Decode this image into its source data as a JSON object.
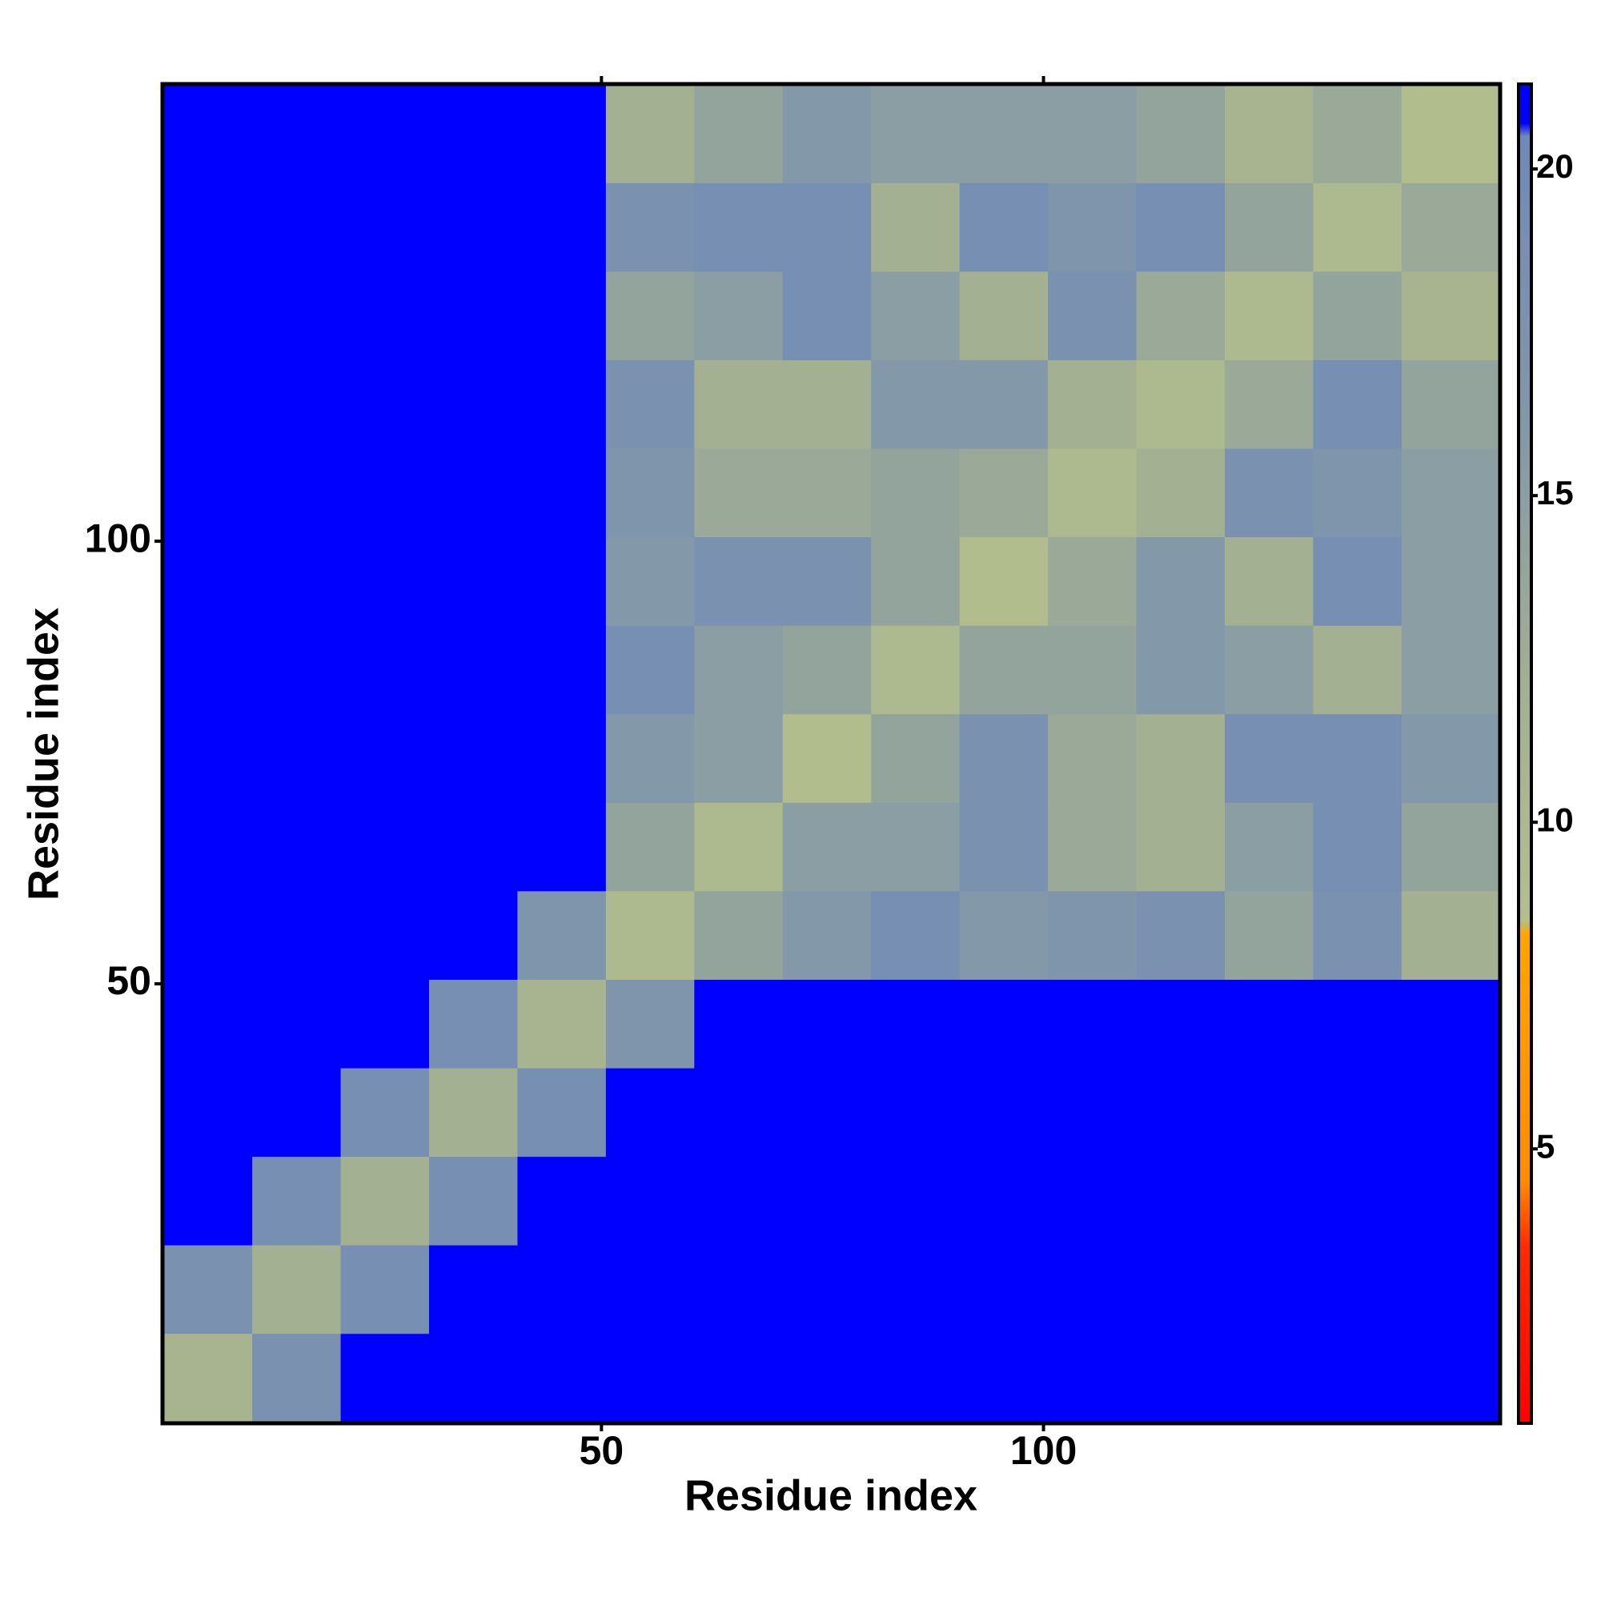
{
  "chart_data": {
    "type": "heatmap",
    "xlabel": "Residue index",
    "ylabel": "Residue index",
    "x_bins": [
      0.5,
      10.5,
      20.5,
      30.5,
      40.5,
      50.5,
      60.5,
      70.5,
      80.5,
      90.5,
      100.5,
      110.5,
      120.5,
      130.5,
      140.5,
      151.5
    ],
    "y_bins": [
      0.5,
      10.5,
      20.5,
      30.5,
      40.5,
      50.5,
      60.5,
      70.5,
      80.5,
      90.5,
      100.5,
      110.5,
      120.5,
      130.5,
      140.5,
      151.5
    ],
    "z": [
      [
        11,
        18,
        21,
        21,
        21,
        21,
        21,
        21,
        21,
        21,
        21,
        21,
        21,
        21,
        21
      ],
      [
        18,
        12,
        19,
        21,
        21,
        21,
        21,
        21,
        21,
        21,
        21,
        21,
        21,
        21,
        21
      ],
      [
        21,
        19,
        12,
        19,
        21,
        21,
        21,
        21,
        21,
        21,
        21,
        21,
        21,
        21,
        21
      ],
      [
        21,
        21,
        19,
        12,
        19,
        21,
        21,
        21,
        21,
        21,
        21,
        21,
        21,
        21,
        21
      ],
      [
        21,
        21,
        21,
        19,
        11,
        17,
        21,
        21,
        21,
        21,
        21,
        21,
        21,
        21,
        21
      ],
      [
        21,
        21,
        21,
        21,
        17,
        10,
        14,
        16,
        19,
        16,
        17,
        18,
        14,
        18,
        12
      ],
      [
        21,
        21,
        21,
        21,
        21,
        14,
        10,
        15,
        15,
        18,
        13,
        12,
        15,
        19,
        14
      ],
      [
        21,
        21,
        21,
        21,
        21,
        16,
        15,
        9,
        14,
        18,
        13,
        12,
        19,
        19,
        16
      ],
      [
        21,
        21,
        21,
        21,
        21,
        19,
        15,
        14,
        10,
        14,
        14,
        16,
        15,
        12,
        15
      ],
      [
        21,
        21,
        21,
        21,
        21,
        16,
        18,
        18,
        14,
        9,
        13,
        16,
        12,
        19,
        15
      ],
      [
        21,
        21,
        21,
        21,
        21,
        17,
        13,
        13,
        14,
        13,
        10,
        12,
        18,
        17,
        15
      ],
      [
        21,
        21,
        21,
        21,
        21,
        18,
        12,
        12,
        16,
        16,
        12,
        10,
        13,
        19,
        14
      ],
      [
        21,
        21,
        21,
        21,
        21,
        14,
        15,
        19,
        15,
        12,
        18,
        13,
        10,
        14,
        11
      ],
      [
        21,
        21,
        21,
        21,
        21,
        18,
        19,
        19,
        12,
        19,
        17,
        19,
        14,
        10,
        13
      ],
      [
        21,
        21,
        21,
        21,
        21,
        12,
        14,
        16,
        15,
        15,
        15,
        14,
        11,
        13,
        9
      ]
    ],
    "xlim": [
      0.35,
      151.65
    ],
    "ylim": [
      0.35,
      151.65
    ],
    "xticks": [
      50,
      100
    ],
    "yticks": [
      50,
      100
    ],
    "colorbar": {
      "lim": [
        0.8,
        21.3
      ],
      "ticks": [
        5,
        10,
        15,
        20
      ]
    },
    "colorscale": [
      [
        0.8,
        "#ff0000"
      ],
      [
        3.5,
        "#ff2a00"
      ],
      [
        4.5,
        "#ff8c00"
      ],
      [
        8.3,
        "#ffa500"
      ],
      [
        8.5,
        "#b4bf8c"
      ],
      [
        12,
        "#a3b092"
      ],
      [
        16,
        "#8398a8"
      ],
      [
        20.5,
        "#6f8ab8"
      ],
      [
        20.7,
        "#0000ff"
      ],
      [
        21.3,
        "#0000ff"
      ]
    ]
  }
}
